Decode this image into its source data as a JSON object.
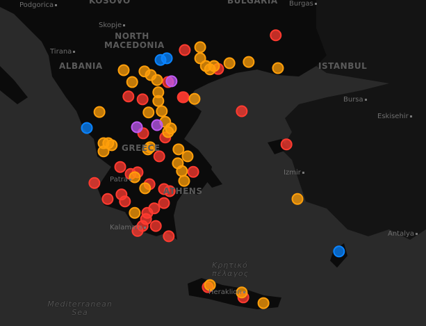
{
  "map": {
    "colors": {
      "sea": "#2a2a2a",
      "land": "#0b0b0b",
      "turkey": "#151515",
      "red": "#ff3b30",
      "orange": "#ff9f0a",
      "blue": "#0a84ff",
      "purple": "#bf5af2"
    },
    "labels": {
      "podgorica": "Podgorica",
      "kosovo": "KOSOVO",
      "bulgaria": "BULGARIA",
      "burgas": "Burgas",
      "skopje": "Skopje",
      "north_macedonia": "NORTH MACEDONIA",
      "tirana": "Tirana",
      "albania": "ALBANIA",
      "istanbul": "ISTANBUL",
      "bursa": "Bursa",
      "eskisehir": "Eskisehir",
      "greece": "GREECE",
      "patra": "Patra",
      "athens": "ATHENS",
      "izmir": "Izmir",
      "kalamata": "Kalamata",
      "antalya": "Antalya",
      "cretan_sea": "Κρητικό πέλαγος",
      "heraklion": "Heraklion",
      "mediterranean": "Mediterranean Sea"
    },
    "markers": [
      {
        "c": "red",
        "lat": 41.78,
        "lon": 26.22
      },
      {
        "c": "red",
        "lat": 41.42,
        "lon": 23.33
      },
      {
        "c": "red",
        "lat": 40.96,
        "lon": 24.39
      },
      {
        "c": "red",
        "lat": 39.93,
        "lon": 25.14
      },
      {
        "c": "red",
        "lat": 39.12,
        "lon": 26.56
      },
      {
        "c": "red",
        "lat": 40.29,
        "lon": 21.54
      },
      {
        "c": "red",
        "lat": 40.22,
        "lon": 21.99
      },
      {
        "c": "red",
        "lat": 40.27,
        "lon": 23.27
      },
      {
        "c": "red",
        "lat": 39.39,
        "lon": 22.01
      },
      {
        "c": "red",
        "lat": 39.29,
        "lon": 22.71
      },
      {
        "c": "red",
        "lat": 38.83,
        "lon": 22.52
      },
      {
        "c": "red",
        "lat": 38.57,
        "lon": 21.28
      },
      {
        "c": "red",
        "lat": 38.18,
        "lon": 20.46
      },
      {
        "c": "red",
        "lat": 37.79,
        "lon": 20.88
      },
      {
        "c": "red",
        "lat": 37.9,
        "lon": 21.32
      },
      {
        "c": "red",
        "lat": 37.73,
        "lon": 21.43
      },
      {
        "c": "red",
        "lat": 38.4,
        "lon": 21.61
      },
      {
        "c": "red",
        "lat": 38.44,
        "lon": 21.83
      },
      {
        "c": "red",
        "lat": 38.15,
        "lon": 22.21
      },
      {
        "c": "red",
        "lat": 38.03,
        "lon": 22.67
      },
      {
        "c": "red",
        "lat": 37.98,
        "lon": 22.85
      },
      {
        "c": "red",
        "lat": 37.69,
        "lon": 22.67
      },
      {
        "c": "red",
        "lat": 37.56,
        "lon": 22.36
      },
      {
        "c": "red",
        "lat": 37.45,
        "lon": 22.14
      },
      {
        "c": "red",
        "lat": 37.13,
        "lon": 21.99
      },
      {
        "c": "red",
        "lat": 37.01,
        "lon": 21.83
      },
      {
        "c": "red",
        "lat": 37.13,
        "lon": 22.41
      },
      {
        "c": "red",
        "lat": 36.88,
        "lon": 22.82
      },
      {
        "c": "red",
        "lat": 37.3,
        "lon": 22.1
      },
      {
        "c": "red",
        "lat": 38.45,
        "lon": 23.6
      },
      {
        "c": "red",
        "lat": 35.64,
        "lon": 24.06
      },
      {
        "c": "red",
        "lat": 35.39,
        "lon": 25.19
      },
      {
        "c": "red",
        "lat": 40.27,
        "lon": 23.29
      },
      {
        "c": "red",
        "lat": 40.64,
        "lon": 22.8
      },
      {
        "c": "orange",
        "lat": 41.49,
        "lon": 23.82
      },
      {
        "c": "orange",
        "lat": 41.22,
        "lon": 23.82
      },
      {
        "c": "orange",
        "lat": 41.03,
        "lon": 24.0
      },
      {
        "c": "orange",
        "lat": 40.95,
        "lon": 24.13
      },
      {
        "c": "orange",
        "lat": 41.03,
        "lon": 24.26
      },
      {
        "c": "orange",
        "lat": 41.1,
        "lon": 24.75
      },
      {
        "c": "orange",
        "lat": 41.13,
        "lon": 25.36
      },
      {
        "c": "orange",
        "lat": 40.98,
        "lon": 26.29
      },
      {
        "c": "orange",
        "lat": 40.93,
        "lon": 21.39
      },
      {
        "c": "orange",
        "lat": 40.64,
        "lon": 21.66
      },
      {
        "c": "orange",
        "lat": 40.9,
        "lon": 22.05
      },
      {
        "c": "orange",
        "lat": 40.81,
        "lon": 22.25
      },
      {
        "c": "orange",
        "lat": 40.69,
        "lon": 22.45
      },
      {
        "c": "orange",
        "lat": 40.39,
        "lon": 22.49
      },
      {
        "c": "orange",
        "lat": 40.18,
        "lon": 22.49
      },
      {
        "c": "orange",
        "lat": 39.93,
        "lon": 22.6
      },
      {
        "c": "orange",
        "lat": 39.9,
        "lon": 22.18
      },
      {
        "c": "orange",
        "lat": 40.23,
        "lon": 23.64
      },
      {
        "c": "orange",
        "lat": 39.91,
        "lon": 20.62
      },
      {
        "c": "orange",
        "lat": 39.15,
        "lon": 20.75
      },
      {
        "c": "orange",
        "lat": 39.15,
        "lon": 20.9
      },
      {
        "c": "orange",
        "lat": 39.1,
        "lon": 21.01
      },
      {
        "c": "orange",
        "lat": 38.95,
        "lon": 20.75
      },
      {
        "c": "orange",
        "lat": 39.0,
        "lon": 22.16
      },
      {
        "c": "orange",
        "lat": 39.05,
        "lon": 22.23
      },
      {
        "c": "orange",
        "lat": 39.0,
        "lon": 23.13
      },
      {
        "c": "orange",
        "lat": 38.83,
        "lon": 23.42
      },
      {
        "c": "orange",
        "lat": 38.66,
        "lon": 23.11
      },
      {
        "c": "orange",
        "lat": 38.47,
        "lon": 23.24
      },
      {
        "c": "orange",
        "lat": 38.23,
        "lon": 23.31
      },
      {
        "c": "orange",
        "lat": 38.32,
        "lon": 21.74
      },
      {
        "c": "orange",
        "lat": 38.05,
        "lon": 22.07
      },
      {
        "c": "orange",
        "lat": 37.45,
        "lon": 21.74
      },
      {
        "c": "orange",
        "lat": 37.79,
        "lon": 26.91
      },
      {
        "c": "orange",
        "lat": 35.69,
        "lon": 24.13
      },
      {
        "c": "orange",
        "lat": 35.51,
        "lon": 25.14
      },
      {
        "c": "orange",
        "lat": 35.25,
        "lon": 25.83
      },
      {
        "c": "orange",
        "lat": 39.67,
        "lon": 22.71
      },
      {
        "c": "orange",
        "lat": 39.51,
        "lon": 22.89
      },
      {
        "c": "orange",
        "lat": 39.42,
        "lon": 22.8
      },
      {
        "c": "blue",
        "lat": 41.18,
        "lon": 22.56
      },
      {
        "c": "blue",
        "lat": 41.22,
        "lon": 22.76
      },
      {
        "c": "blue",
        "lat": 39.52,
        "lon": 20.22
      },
      {
        "c": "blue",
        "lat": 36.51,
        "lon": 28.23
      },
      {
        "c": "purple",
        "lat": 40.66,
        "lon": 22.91
      },
      {
        "c": "purple",
        "lat": 39.54,
        "lon": 21.81
      },
      {
        "c": "purple",
        "lat": 39.59,
        "lon": 22.45
      }
    ]
  }
}
